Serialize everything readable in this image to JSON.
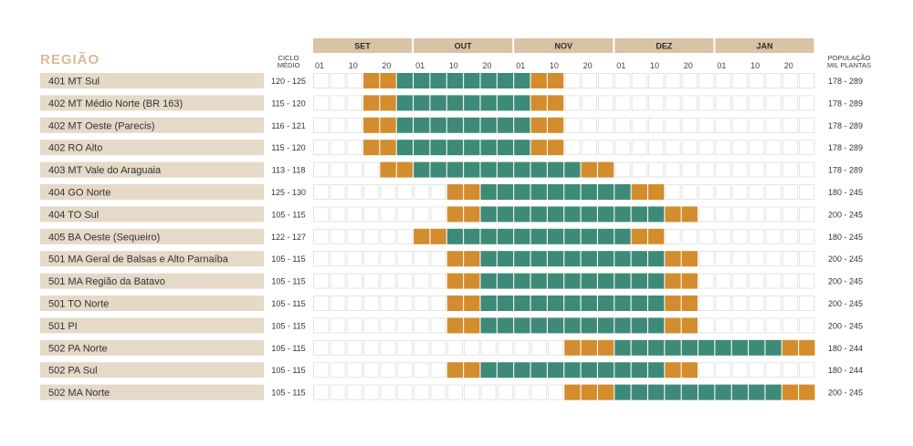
{
  "chart_data": {
    "type": "gantt",
    "region_header": "REGIÃO",
    "cycle_header": [
      "CICLO",
      "MÉDIO"
    ],
    "population_header": [
      "POPULAÇÃO",
      "MIL PLANTAS"
    ],
    "months": [
      "SET",
      "OUT",
      "NOV",
      "DEZ",
      "JAN"
    ],
    "day_ticks": [
      "01",
      "10",
      "20"
    ],
    "slots_per_month": 3,
    "colors": {
      "header_band": "#d8c3a5",
      "label_band": "#e5d9c8",
      "green": "#3e8a78",
      "orange": "#d38d2e",
      "empty_border": "#e3e3e3"
    },
    "rows": [
      {
        "region": "401 MT Sul",
        "cycle": "120 - 125",
        "population": "178 - 289",
        "orange_early": [
          3,
          4
        ],
        "green": [
          5,
          12
        ],
        "orange_late": [
          13,
          14
        ]
      },
      {
        "region": "402 MT Médio Norte (BR 163)",
        "cycle": "115 - 120",
        "population": "178 - 289",
        "orange_early": [
          3,
          4
        ],
        "green": [
          5,
          12
        ],
        "orange_late": [
          13,
          14
        ]
      },
      {
        "region": "402 MT Oeste (Parecis)",
        "cycle": "116 - 121",
        "population": "178 - 289",
        "orange_early": [
          3,
          4
        ],
        "green": [
          5,
          12
        ],
        "orange_late": [
          13,
          14
        ]
      },
      {
        "region": "402 RO Alto",
        "cycle": "115 - 120",
        "population": "178 - 289",
        "orange_early": [
          3,
          4
        ],
        "green": [
          5,
          12
        ],
        "orange_late": [
          13,
          14
        ]
      },
      {
        "region": "403 MT Vale do Araguaia",
        "cycle": "113 - 118",
        "population": "178 - 289",
        "orange_early": [
          4,
          5
        ],
        "green": [
          6,
          15
        ],
        "orange_late": [
          16,
          17
        ]
      },
      {
        "region": "404 GO Norte",
        "cycle": "125 - 130",
        "population": "180 - 245",
        "orange_early": [
          8,
          9
        ],
        "green": [
          10,
          18
        ],
        "orange_late": [
          19,
          20
        ]
      },
      {
        "region": "404 TO Sul",
        "cycle": "105 - 115",
        "population": "200 - 245",
        "orange_early": [
          8,
          9
        ],
        "green": [
          10,
          20
        ],
        "orange_late": [
          21,
          22
        ]
      },
      {
        "region": "405 BA Oeste (Sequeiro)",
        "cycle": "122 - 127",
        "population": "180 - 245",
        "orange_early": [
          6,
          7
        ],
        "green": [
          8,
          18
        ],
        "orange_late": [
          19,
          20
        ]
      },
      {
        "region": "501 MA Geral de Balsas e Alto Parnaíba",
        "cycle": "105 - 115",
        "population": "200 - 245",
        "orange_early": [
          8,
          9
        ],
        "green": [
          10,
          20
        ],
        "orange_late": [
          21,
          22
        ]
      },
      {
        "region": "501 MA Região da Batavo",
        "cycle": "105 - 115",
        "population": "200 - 245",
        "orange_early": [
          8,
          9
        ],
        "green": [
          10,
          20
        ],
        "orange_late": [
          21,
          22
        ]
      },
      {
        "region": "501 TO Norte",
        "cycle": "105 - 115",
        "population": "200 - 245",
        "orange_early": [
          8,
          9
        ],
        "green": [
          10,
          20
        ],
        "orange_late": [
          21,
          22
        ]
      },
      {
        "region": "501 PI",
        "cycle": "105 - 115",
        "population": "200 - 245",
        "orange_early": [
          8,
          9
        ],
        "green": [
          10,
          20
        ],
        "orange_late": [
          21,
          22
        ]
      },
      {
        "region": "502 PA Norte",
        "cycle": "105 - 115",
        "population": "180 - 244",
        "orange_early": [
          15,
          17
        ],
        "green": [
          18,
          27
        ],
        "orange_late": [
          28,
          29
        ]
      },
      {
        "region": "502 PA Sul",
        "cycle": "105 - 115",
        "population": "180 - 244",
        "orange_early": [
          8,
          9
        ],
        "green": [
          10,
          20
        ],
        "orange_late": [
          21,
          22
        ]
      },
      {
        "region": "502 MA Norte",
        "cycle": "105 - 115",
        "population": "200 - 245",
        "orange_early": [
          15,
          17
        ],
        "green": [
          18,
          27
        ],
        "orange_late": [
          28,
          29
        ]
      }
    ]
  }
}
